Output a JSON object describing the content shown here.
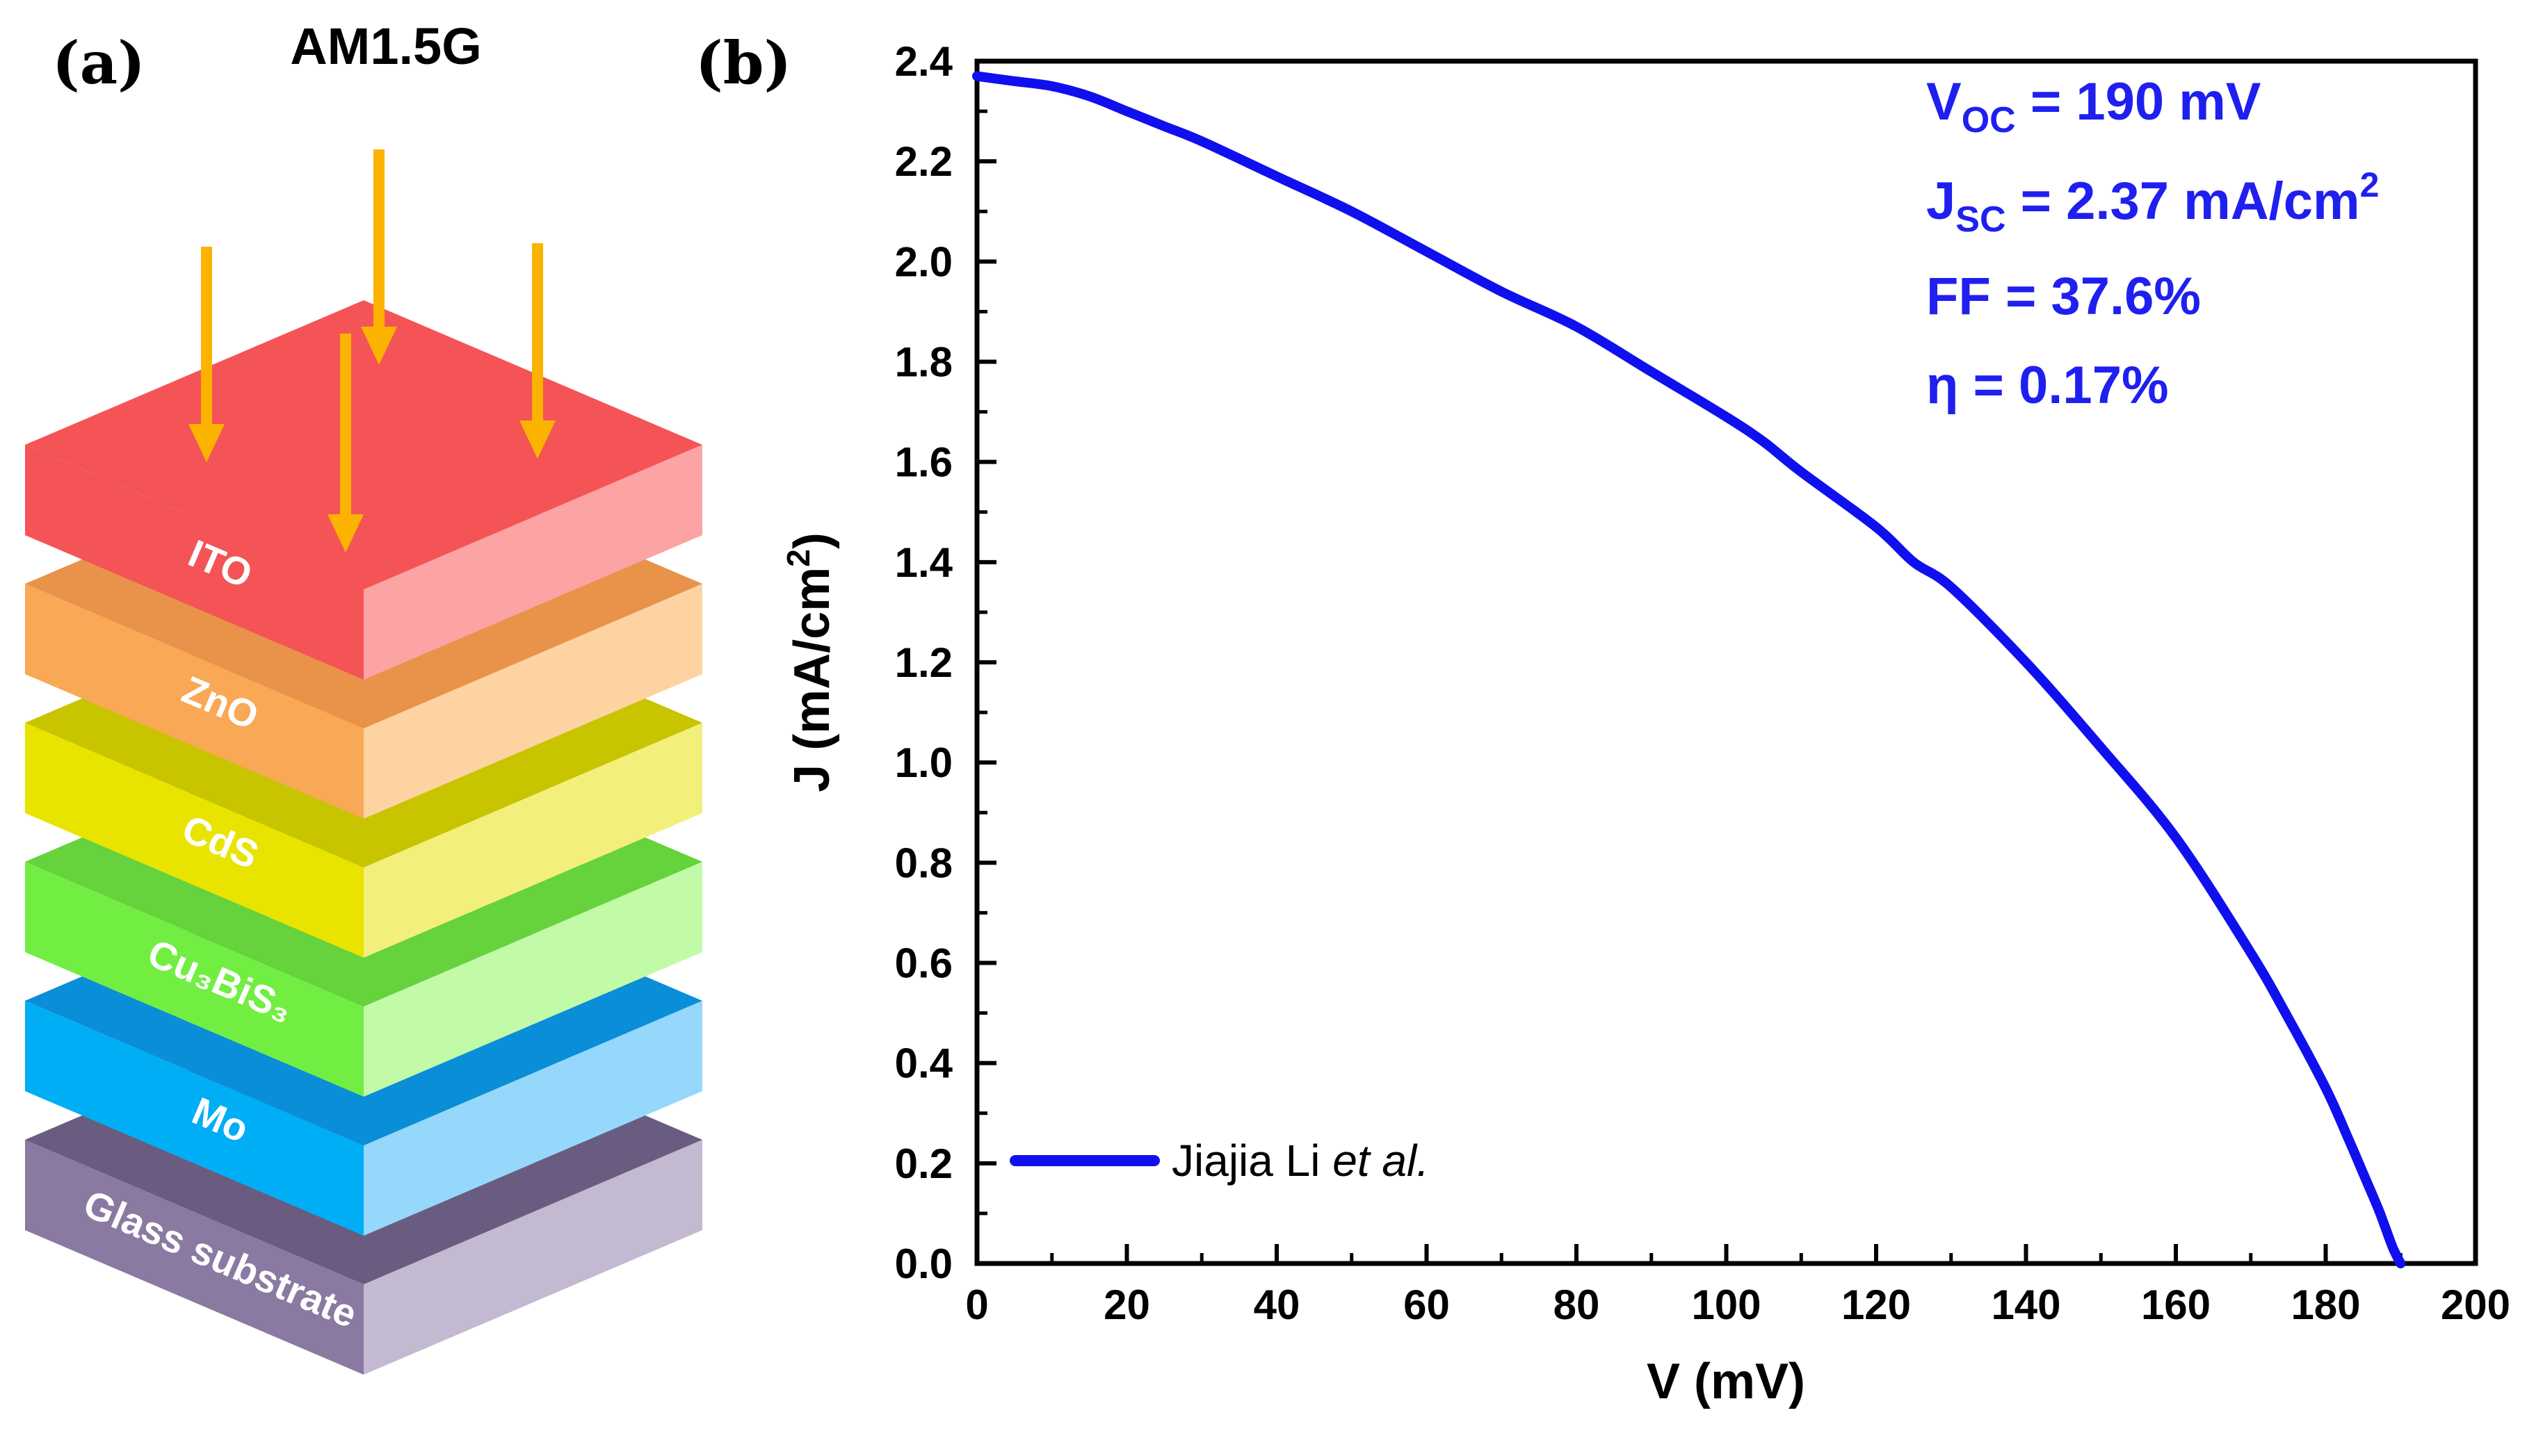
{
  "panel_a": {
    "label": "(a)",
    "illumination": "AM1.5G",
    "layers": [
      {
        "name": "ITO",
        "top": "#f45456",
        "front": "#f45456",
        "side": "#fca3a4"
      },
      {
        "name": "ZnO",
        "top": "#e8924a",
        "front": "#f9a856",
        "side": "#fdd3a2"
      },
      {
        "name": "CdS",
        "top": "#c8c400",
        "front": "#e8e400",
        "side": "#f2f07a"
      },
      {
        "name": "Cu₃BiS₃",
        "top": "#66d23c",
        "front": "#72ee42",
        "side": "#c2fba8"
      },
      {
        "name": "Mo",
        "top": "#0a8ed8",
        "front": "#00aef6",
        "side": "#95d8fb"
      },
      {
        "name": "Glass substrate",
        "top": "#6a5c80",
        "front": "#8a7aa2",
        "side": "#c3b9d1"
      }
    ],
    "arrow_color": "#fbb300"
  },
  "panel_b": {
    "label": "(b)",
    "line_color": "#1010ee",
    "annotations": {
      "voc": {
        "main": "V",
        "sub": "OC",
        "rest": " = 190 mV"
      },
      "jsc": {
        "main": "J",
        "sub": "SC",
        "rest": " = 2.37 mA/cm",
        "sup": "2"
      },
      "ff": "FF = 37.6%",
      "eta": "η = 0.17%"
    },
    "legend": {
      "name": "Jiajia Li ",
      "italic": "et al."
    }
  },
  "chart_data": {
    "type": "line",
    "xlabel": "V (mV)",
    "ylabel": "J (mA/cm2)",
    "ylabel_parts": {
      "main": "J (mA/cm",
      "sup": "2",
      "end": ")"
    },
    "xlim": [
      0,
      200
    ],
    "ylim": [
      0,
      2.4
    ],
    "xticks": [
      "0",
      "20",
      "40",
      "60",
      "80",
      "100",
      "120",
      "140",
      "160",
      "180",
      "200"
    ],
    "yticks": [
      "0.0",
      "0.2",
      "0.4",
      "0.6",
      "0.8",
      "1.0",
      "1.2",
      "1.4",
      "1.6",
      "1.8",
      "2.0",
      "2.2",
      "2.4"
    ],
    "grid": false,
    "legend_position": "bottom-left",
    "series": [
      {
        "name": "Jiajia Li et al.",
        "x": [
          0,
          5,
          10,
          15,
          20,
          25,
          30,
          40,
          50,
          60,
          70,
          80,
          90,
          100,
          105,
          110,
          120,
          125,
          130,
          140,
          150,
          160,
          170,
          175,
          180,
          183,
          185,
          187,
          188,
          189,
          190
        ],
        "y": [
          2.37,
          2.36,
          2.35,
          2.33,
          2.3,
          2.27,
          2.24,
          2.17,
          2.1,
          2.02,
          1.94,
          1.87,
          1.78,
          1.69,
          1.64,
          1.58,
          1.47,
          1.4,
          1.35,
          1.2,
          1.03,
          0.85,
          0.62,
          0.49,
          0.35,
          0.25,
          0.18,
          0.11,
          0.07,
          0.03,
          0.0
        ]
      }
    ]
  }
}
